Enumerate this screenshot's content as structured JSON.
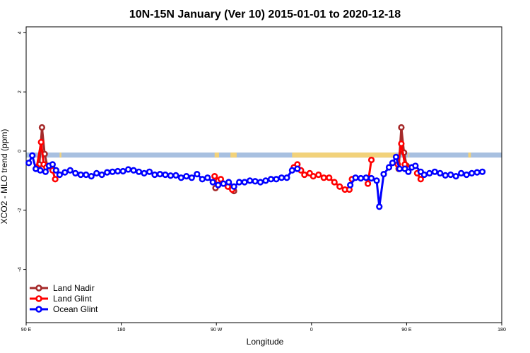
{
  "chart_data": {
    "type": "line",
    "title": "10N-15N January (Ver 10)   2015-01-01 to 2020-12-18",
    "xlabel": "Longitude",
    "ylabel": "XCO2 - MLO trend (ppm)",
    "xlim": [
      -90,
      180
    ],
    "ylim": [
      -5.8,
      4.2
    ],
    "x_ticks": [
      {
        "value": -90,
        "label": "90 E"
      },
      {
        "value": -36,
        "label": "180"
      },
      {
        "value": 18,
        "label": "90 W"
      },
      {
        "value": 72,
        "label": "0"
      },
      {
        "value": 126,
        "label": "90 E"
      },
      {
        "value": 180,
        "label": "180"
      }
    ],
    "y_ticks": [
      {
        "value": 4,
        "label": "4"
      },
      {
        "value": 2,
        "label": "2"
      },
      {
        "value": 0,
        "label": "0"
      },
      {
        "value": -2,
        "label": "-2"
      },
      {
        "value": -4,
        "label": "-4"
      }
    ],
    "land_band": {
      "y_top": -0.05,
      "y_bottom": -0.22,
      "ocean_color": "#a8c0e0",
      "land_color": "#f2d27a",
      "land_segments": [
        [
          -71,
          -70
        ],
        [
          17,
          19.5
        ],
        [
          26,
          29.5
        ],
        [
          61,
          120
        ],
        [
          127,
          127.5
        ],
        [
          161,
          162.5
        ]
      ]
    },
    "legend": {
      "position": "bottom-left",
      "entries": [
        {
          "label": "Land Nadir",
          "color": "#a52a2a"
        },
        {
          "label": "Land Glint",
          "color": "#ff0000"
        },
        {
          "label": "Ocean Glint",
          "color": "#0000ff"
        }
      ]
    },
    "series": [
      {
        "name": "Land Nadir",
        "color": "#a52a2a",
        "segments": [
          [
            [
              -82.5,
              -0.45
            ],
            [
              -81,
              0.8
            ],
            [
              -79.5,
              -0.1
            ],
            [
              -78,
              -0.5
            ]
          ],
          [
            [
              17.5,
              -1.25
            ],
            [
              20,
              -1.0
            ]
          ],
          [
            [
              25,
              -1.2
            ],
            [
              28,
              -1.35
            ]
          ],
          [
            [
              121.5,
              -0.6
            ],
            [
              123,
              0.8
            ],
            [
              124.5,
              -0.05
            ],
            [
              126,
              -0.5
            ]
          ]
        ]
      },
      {
        "name": "Land Glint",
        "color": "#ff0000",
        "segments": [
          [
            [
              -84,
              -0.55
            ],
            [
              -81.5,
              0.3
            ],
            [
              -80,
              -0.45
            ],
            [
              -78.5,
              -0.55
            ],
            [
              -76.5,
              -0.5
            ],
            [
              -75,
              -0.65
            ],
            [
              -73.5,
              -0.95
            ]
          ],
          [
            [
              17,
              -0.85
            ],
            [
              19,
              -1.0
            ],
            [
              20.5,
              -0.95
            ]
          ],
          [
            [
              24.5,
              -1.2
            ],
            [
              27,
              -1.3
            ]
          ],
          [
            [
              62,
              -0.55
            ],
            [
              64,
              -0.45
            ],
            [
              66,
              -0.65
            ],
            [
              68,
              -0.8
            ],
            [
              71,
              -0.75
            ],
            [
              73,
              -0.85
            ],
            [
              76,
              -0.8
            ],
            [
              79,
              -0.9
            ],
            [
              82,
              -0.9
            ],
            [
              85,
              -1.05
            ],
            [
              88,
              -1.2
            ],
            [
              91,
              -1.3
            ],
            [
              93.5,
              -1.3
            ],
            [
              95,
              -0.95
            ]
          ],
          [
            [
              104,
              -1.1
            ],
            [
              106,
              -0.3
            ]
          ],
          [
            [
              121,
              -0.45
            ],
            [
              123,
              0.25
            ],
            [
              125,
              -0.45
            ],
            [
              127,
              -0.6
            ]
          ],
          [
            [
              132,
              -0.75
            ],
            [
              134,
              -0.95
            ]
          ]
        ]
      },
      {
        "name": "Ocean Glint",
        "color": "#0000ff",
        "segments": [
          [
            [
              -88.5,
              -0.4
            ],
            [
              -86.5,
              -0.15
            ],
            [
              -84.5,
              -0.6
            ],
            [
              -82,
              -0.65
            ],
            [
              -79,
              -0.7
            ],
            [
              -77,
              -0.5
            ],
            [
              -75,
              -0.45
            ],
            [
              -73,
              -0.65
            ],
            [
              -71,
              -0.8
            ],
            [
              -68,
              -0.72
            ],
            [
              -65,
              -0.65
            ],
            [
              -62,
              -0.75
            ],
            [
              -59,
              -0.8
            ],
            [
              -56,
              -0.8
            ],
            [
              -53,
              -0.85
            ],
            [
              -50,
              -0.75
            ],
            [
              -47,
              -0.8
            ],
            [
              -44,
              -0.72
            ],
            [
              -41,
              -0.7
            ],
            [
              -38,
              -0.68
            ],
            [
              -35,
              -0.68
            ],
            [
              -32,
              -0.62
            ],
            [
              -29,
              -0.65
            ],
            [
              -26,
              -0.7
            ],
            [
              -23,
              -0.75
            ],
            [
              -20,
              -0.7
            ],
            [
              -17,
              -0.8
            ],
            [
              -14,
              -0.78
            ],
            [
              -11,
              -0.8
            ],
            [
              -8,
              -0.83
            ],
            [
              -5,
              -0.82
            ],
            [
              -2,
              -0.9
            ],
            [
              1,
              -0.85
            ],
            [
              4,
              -0.9
            ],
            [
              7,
              -0.78
            ],
            [
              10,
              -0.95
            ],
            [
              13,
              -0.9
            ],
            [
              16,
              -1.05
            ],
            [
              19,
              -1.15
            ],
            [
              22,
              -1.1
            ],
            [
              25,
              -1.05
            ],
            [
              28,
              -1.2
            ],
            [
              31,
              -1.05
            ],
            [
              34,
              -1.05
            ],
            [
              37,
              -1.0
            ],
            [
              40,
              -1.02
            ],
            [
              43,
              -1.05
            ],
            [
              46,
              -1.0
            ],
            [
              49,
              -0.95
            ],
            [
              52,
              -0.95
            ],
            [
              55,
              -0.9
            ],
            [
              58,
              -0.9
            ],
            [
              61,
              -0.65
            ],
            [
              64,
              -0.6
            ]
          ],
          [
            [
              94,
              -1.15
            ],
            [
              97,
              -0.9
            ],
            [
              100,
              -0.92
            ],
            [
              103,
              -0.9
            ],
            [
              106,
              -0.92
            ],
            [
              109,
              -1.0
            ],
            [
              110.5,
              -1.88
            ],
            [
              113,
              -0.78
            ],
            [
              116,
              -0.55
            ],
            [
              118,
              -0.4
            ],
            [
              120,
              -0.2
            ],
            [
              122,
              -0.6
            ],
            [
              125,
              -0.6
            ],
            [
              127,
              -0.7
            ],
            [
              129,
              -0.55
            ],
            [
              131,
              -0.5
            ],
            [
              134,
              -0.7
            ],
            [
              136,
              -0.8
            ],
            [
              139,
              -0.75
            ],
            [
              142,
              -0.7
            ],
            [
              145,
              -0.75
            ],
            [
              148,
              -0.82
            ],
            [
              151,
              -0.8
            ],
            [
              154,
              -0.85
            ],
            [
              157,
              -0.75
            ],
            [
              160,
              -0.8
            ],
            [
              163,
              -0.75
            ],
            [
              166,
              -0.72
            ],
            [
              169,
              -0.7
            ]
          ]
        ]
      }
    ]
  }
}
